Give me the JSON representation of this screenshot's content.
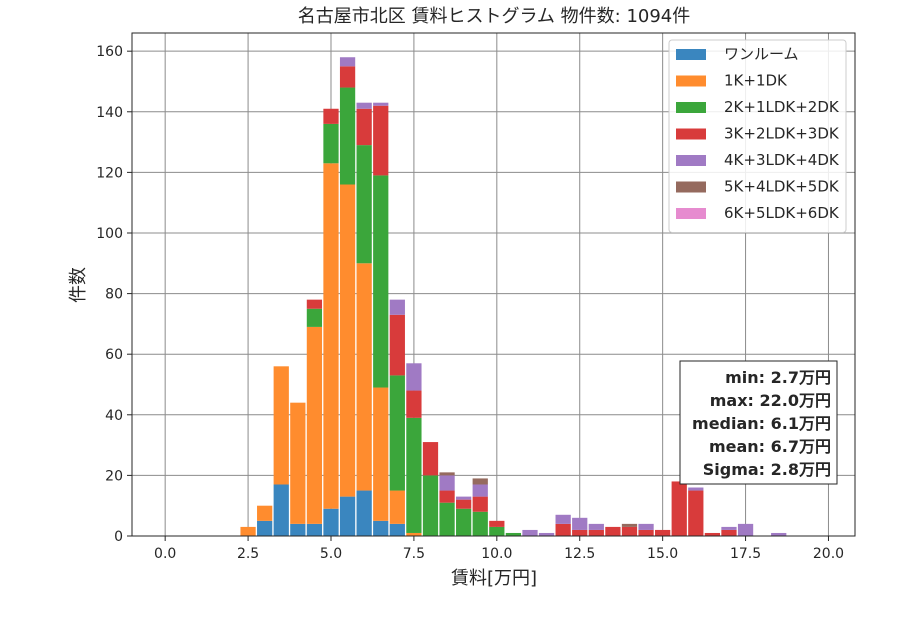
{
  "chart_data": {
    "type": "bar",
    "stacked": true,
    "title": "名古屋市北区 賃料ヒストグラム 物件数: 1094件",
    "xlabel": "賃料[万円]",
    "ylabel": "件数",
    "xlim": [
      -1.0,
      20.8
    ],
    "ylim": [
      0,
      166
    ],
    "xticks": [
      0.0,
      2.5,
      5.0,
      7.5,
      10.0,
      12.5,
      15.0,
      17.5,
      20.0
    ],
    "xtick_labels": [
      "0.0",
      "2.5",
      "5.0",
      "7.5",
      "10.0",
      "12.5",
      "15.0",
      "17.5",
      "20.0"
    ],
    "yticks": [
      0,
      20,
      40,
      60,
      80,
      100,
      120,
      140,
      160
    ],
    "ytick_labels": [
      "0",
      "20",
      "40",
      "60",
      "80",
      "100",
      "120",
      "140",
      "160"
    ],
    "bin_width": 0.5,
    "grid": true,
    "legend_position": "top-right",
    "series": [
      {
        "name": "ワンルーム",
        "color": "#3a86bf",
        "x": [
          3.0,
          3.5,
          4.0,
          4.5,
          5.0,
          5.5,
          6.0,
          6.5,
          7.0
        ],
        "values": [
          5,
          17,
          4,
          4,
          9,
          13,
          15,
          5,
          4
        ]
      },
      {
        "name": "1K+1DK",
        "color": "#ff8c2e",
        "x": [
          2.5,
          3.0,
          3.5,
          4.0,
          4.5,
          5.0,
          5.5,
          6.0,
          6.5,
          7.0,
          7.5
        ],
        "values": [
          3,
          5,
          39,
          40,
          65,
          114,
          103,
          75,
          44,
          11,
          1
        ]
      },
      {
        "name": "2K+1LDK+2DK",
        "color": "#3ba63b",
        "x": [
          4.5,
          5.0,
          5.5,
          6.0,
          6.5,
          7.0,
          7.5,
          8.0,
          8.5,
          9.0,
          9.5,
          10.0,
          10.5
        ],
        "values": [
          6,
          13,
          32,
          39,
          70,
          38,
          38,
          20,
          11,
          9,
          8,
          3,
          1
        ]
      },
      {
        "name": "3K+2LDK+3DK",
        "color": "#d83b3b",
        "x": [
          4.5,
          5.0,
          5.5,
          6.0,
          6.5,
          7.0,
          7.5,
          8.0,
          8.5,
          9.0,
          9.5,
          10.0,
          12.0,
          12.5,
          13.0,
          13.5,
          14.0,
          14.5,
          15.0,
          15.5,
          16.0,
          16.5,
          17.0
        ],
        "values": [
          3,
          5,
          7,
          12,
          23,
          20,
          9,
          11,
          4,
          3,
          5,
          2,
          4,
          2,
          2,
          3,
          3,
          2,
          2,
          18,
          15,
          1,
          2
        ]
      },
      {
        "name": "4K+3LDK+4DK",
        "color": "#a07ac4",
        "x": [
          5.5,
          6.0,
          6.5,
          7.0,
          7.5,
          8.5,
          9.0,
          9.5,
          11.0,
          11.5,
          12.0,
          12.5,
          13.0,
          14.5,
          16.0,
          17.0,
          17.5,
          18.5
        ],
        "values": [
          3,
          2,
          1,
          5,
          9,
          5,
          1,
          4,
          2,
          1,
          3,
          4,
          2,
          2,
          1,
          1,
          4,
          1
        ]
      },
      {
        "name": "5K+4LDK+5DK",
        "color": "#956a5e",
        "x": [
          8.5,
          9.5,
          14.0
        ],
        "values": [
          1,
          2,
          1
        ]
      },
      {
        "name": "6K+5LDK+6DK",
        "color": "#e68bcf",
        "x": [],
        "values": []
      }
    ]
  },
  "stats_box": {
    "lines": [
      "min: 2.7万円",
      "max: 22.0万円",
      "median: 6.1万円",
      "mean: 6.7万円",
      "Sigma: 2.8万円"
    ]
  }
}
